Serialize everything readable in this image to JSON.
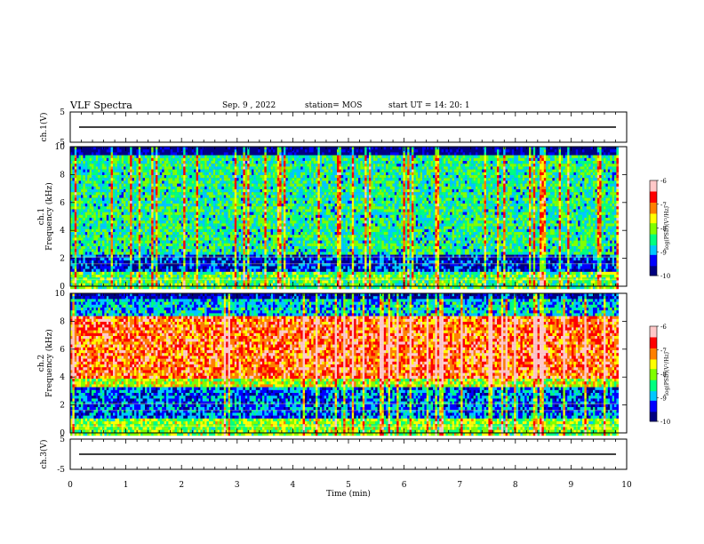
{
  "header": {
    "title": "VLF Spectra",
    "date": "Sep. 9 , 2022",
    "station": "station= MOS",
    "start_ut": "start UT =  14: 20: 1"
  },
  "colors": {
    "colormap": [
      "#000080",
      "#0000ff",
      "#00c8ff",
      "#00ff80",
      "#80ff00",
      "#ffff00",
      "#ff8000",
      "#ff0000",
      "#ffc8c8"
    ],
    "trace": "#000000"
  },
  "chart_data": [
    {
      "type": "line",
      "panel": "ch.1",
      "ylabel": "ch.1(V)",
      "yticks": [
        "5",
        "-5"
      ],
      "ylim": [
        -5,
        5
      ],
      "xlim": [
        0,
        10
      ],
      "description_value": 0
    },
    {
      "type": "heatmap",
      "panel": "ch.1 spectrogram",
      "ylabel": "ch.1 Frequency (kHz)",
      "yticks": [
        "0",
        "2",
        "4",
        "6",
        "8",
        "10"
      ],
      "ylim": [
        0,
        10
      ],
      "xlim": [
        0,
        9.83
      ],
      "colorbar": {
        "label": "log(PSD)(V²/Hz)",
        "ticks": [
          "-6",
          "-7",
          "-8",
          "-9",
          "-10"
        ],
        "range": [
          -10,
          -6
        ]
      }
    },
    {
      "type": "heatmap",
      "panel": "ch.2 spectrogram",
      "ylabel": "ch.2 Frequency (kHz)",
      "yticks": [
        "0",
        "2",
        "4",
        "6",
        "8",
        "10"
      ],
      "ylim": [
        0,
        10
      ],
      "xlim": [
        0,
        9.83
      ],
      "colorbar": {
        "label": "log(PSD)(V²/Hz)",
        "ticks": [
          "-6",
          "-7",
          "-8",
          "-9",
          "-10"
        ],
        "range": [
          -10,
          -6
        ]
      }
    },
    {
      "type": "line",
      "panel": "ch.3",
      "ylabel": "ch.3(V)",
      "yticks": [
        "5",
        "-5"
      ],
      "ylim": [
        -5,
        5
      ],
      "xlim": [
        0,
        10
      ],
      "description_value": 0
    }
  ],
  "xaxis": {
    "label": "Time (min)",
    "ticks": [
      "0",
      "1",
      "2",
      "3",
      "4",
      "5",
      "6",
      "7",
      "8",
      "9",
      "10"
    ]
  }
}
